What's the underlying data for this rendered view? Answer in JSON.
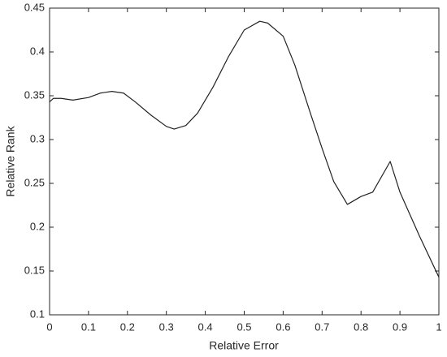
{
  "chart_data": {
    "type": "line",
    "xlabel": "Relative Error",
    "ylabel": "Relative Rank",
    "x": [
      0,
      0.01,
      0.03,
      0.06,
      0.1,
      0.13,
      0.16,
      0.19,
      0.22,
      0.26,
      0.3,
      0.32,
      0.35,
      0.38,
      0.42,
      0.46,
      0.5,
      0.54,
      0.56,
      0.6,
      0.63,
      0.67,
      0.7,
      0.73,
      0.765,
      0.8,
      0.83,
      0.875,
      0.9,
      0.95,
      1
    ],
    "series": [
      {
        "color": "#222222",
        "values": [
          0.343,
          0.347,
          0.347,
          0.345,
          0.348,
          0.353,
          0.355,
          0.353,
          0.343,
          0.328,
          0.315,
          0.312,
          0.316,
          0.33,
          0.36,
          0.395,
          0.425,
          0.435,
          0.433,
          0.418,
          0.385,
          0.33,
          0.29,
          0.252,
          0.226,
          0.235,
          0.24,
          0.275,
          0.24,
          0.19,
          0.143
        ]
      }
    ],
    "xlim": [
      0,
      1
    ],
    "ylim": [
      0.1,
      0.45
    ],
    "xticks": [
      0,
      0.1,
      0.2,
      0.3,
      0.4,
      0.5,
      0.6,
      0.7,
      0.8,
      0.9,
      1
    ],
    "yticks": [
      0.1,
      0.15,
      0.2,
      0.25,
      0.3,
      0.35,
      0.4,
      0.45
    ]
  }
}
